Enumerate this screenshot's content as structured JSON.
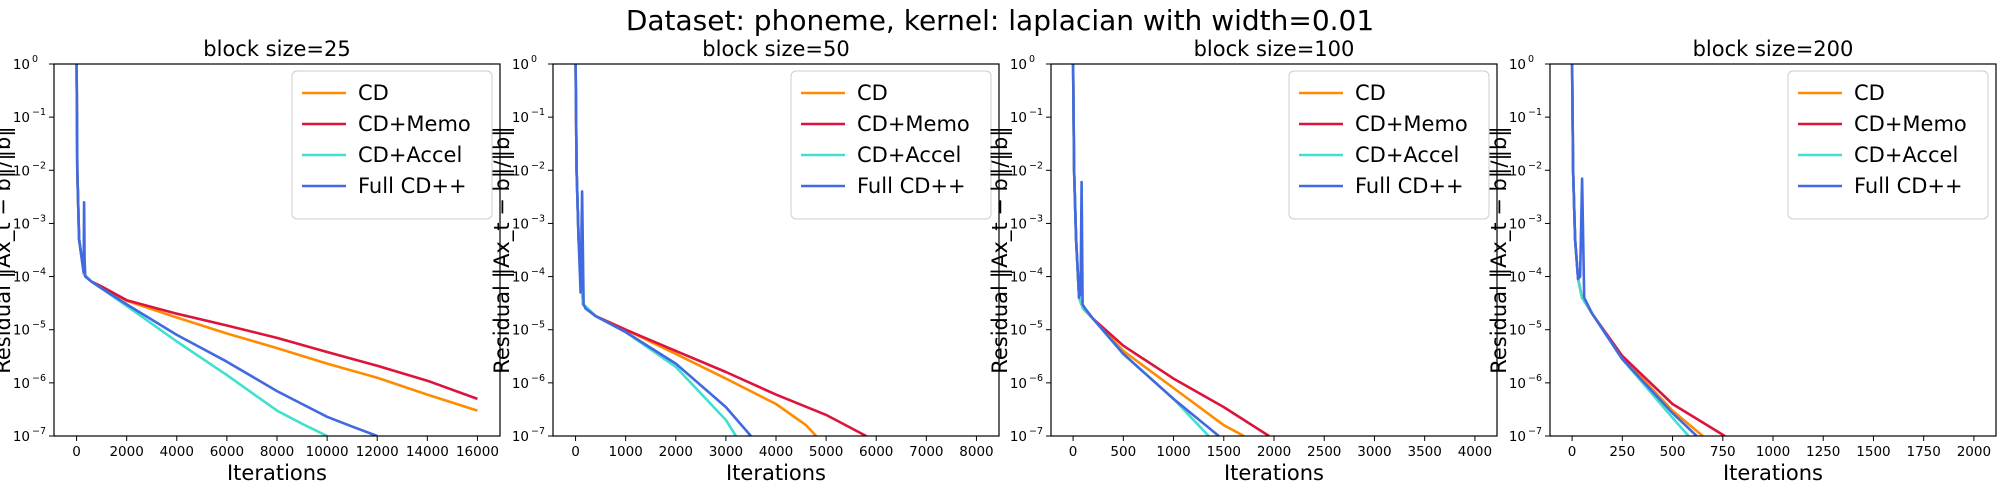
{
  "suptitle": "Dataset: phoneme, kernel: laplacian with width=0.01",
  "colors": {
    "CD": "#ff8c00",
    "CD+Memo": "#dc143c",
    "CD+Accel": "#40e0d0",
    "Full CD++": "#4169e1"
  },
  "chart_data": [
    {
      "type": "line",
      "title": "block size=25",
      "xlabel": "Iterations",
      "ylabel": "Residual ‖Ax_t − b‖/‖b‖",
      "yscale": "log",
      "ylim": [
        1e-07,
        1
      ],
      "xlim": [
        -900,
        16900
      ],
      "xticks": [
        0,
        2000,
        4000,
        6000,
        8000,
        10000,
        12000,
        14000,
        16000
      ],
      "yticks": [
        "10^0",
        "10^-1",
        "10^-2",
        "10^-3",
        "10^-4",
        "10^-5",
        "10^-6",
        "10^-7"
      ],
      "legend": "upper right",
      "series": [
        {
          "name": "CD",
          "x": [
            0,
            30,
            100,
            300,
            600,
            1000,
            2000,
            4000,
            6000,
            8000,
            10000,
            12000,
            14000,
            16000
          ],
          "y": [
            1,
            0.01,
            0.0005,
            0.00011,
            8e-05,
            6.5e-05,
            3.5e-05,
            1.7e-05,
            8.5e-06,
            4.5e-06,
            2.3e-06,
            1.25e-06,
            6e-07,
            3e-07
          ]
        },
        {
          "name": "CD+Memo",
          "x": [
            0,
            30,
            100,
            300,
            600,
            1000,
            2000,
            4000,
            6000,
            8000,
            10000,
            12000,
            14000,
            16000
          ],
          "y": [
            1,
            0.01,
            0.0005,
            0.00011,
            8e-05,
            6.5e-05,
            3.6e-05,
            2e-05,
            1.2e-05,
            7e-06,
            3.8e-06,
            2.1e-06,
            1.1e-06,
            5e-07
          ]
        },
        {
          "name": "CD+Accel",
          "x": [
            0,
            30,
            100,
            300,
            600,
            1000,
            2000,
            4000,
            6000,
            8000,
            9000,
            10000
          ],
          "y": [
            1,
            0.01,
            0.0005,
            0.00011,
            8e-05,
            6e-05,
            2.8e-05,
            6e-06,
            1.4e-06,
            3e-07,
            1.7e-07,
            1e-07
          ]
        },
        {
          "name": "Full CD++",
          "x": [
            0,
            30,
            100,
            280,
            300,
            320,
            350,
            600,
            1000,
            2000,
            4000,
            6000,
            8000,
            9000,
            10000,
            11000,
            12000
          ],
          "y": [
            1,
            0.01,
            0.0005,
            0.00012,
            0.0025,
            0.0002,
            0.0001,
            8e-05,
            6e-05,
            3e-05,
            8e-06,
            2.5e-06,
            7e-07,
            4e-07,
            2.3e-07,
            1.5e-07,
            1e-07
          ]
        }
      ]
    },
    {
      "type": "line",
      "title": "block size=50",
      "xlabel": "Iterations",
      "ylabel": "Residual ‖Ax_t − b‖/‖b‖",
      "yscale": "log",
      "ylim": [
        1e-07,
        1
      ],
      "xlim": [
        -450,
        8450
      ],
      "xticks": [
        0,
        1000,
        2000,
        3000,
        4000,
        5000,
        6000,
        7000,
        8000
      ],
      "yticks": [
        "10^0",
        "10^-1",
        "10^-2",
        "10^-3",
        "10^-4",
        "10^-5",
        "10^-6",
        "10^-7"
      ],
      "legend": "upper right",
      "series": [
        {
          "name": "CD",
          "x": [
            0,
            20,
            60,
            150,
            400,
            1000,
            2000,
            3000,
            4000,
            4600,
            4800
          ],
          "y": [
            1,
            0.01,
            0.0005,
            3e-05,
            1.8e-05,
            1e-05,
            3.5e-06,
            1.2e-06,
            4e-07,
            1.6e-07,
            1e-07
          ]
        },
        {
          "name": "CD+Memo",
          "x": [
            0,
            20,
            60,
            150,
            400,
            1000,
            2000,
            3000,
            4000,
            5000,
            5800
          ],
          "y": [
            1,
            0.01,
            0.0005,
            3e-05,
            1.8e-05,
            1e-05,
            4e-06,
            1.6e-06,
            6e-07,
            2.5e-07,
            1e-07
          ]
        },
        {
          "name": "CD+Accel",
          "x": [
            0,
            20,
            60,
            150,
            400,
            1000,
            2000,
            3000,
            3200
          ],
          "y": [
            1,
            0.01,
            0.0005,
            3e-05,
            1.8e-05,
            9e-06,
            2e-06,
            2e-07,
            1e-07
          ]
        },
        {
          "name": "Full CD++",
          "x": [
            0,
            20,
            60,
            100,
            130,
            160,
            200,
            400,
            1000,
            2000,
            3000,
            3500
          ],
          "y": [
            1,
            0.01,
            0.0005,
            5e-05,
            0.004,
            3e-05,
            2.5e-05,
            1.8e-05,
            9e-06,
            2.3e-06,
            3.5e-07,
            1e-07
          ]
        }
      ]
    },
    {
      "type": "line",
      "title": "block size=100",
      "xlabel": "Iterations",
      "ylabel": "Residual ‖Ax_t − b‖/‖b‖",
      "yscale": "log",
      "ylim": [
        1e-07,
        1
      ],
      "xlim": [
        -220,
        4220
      ],
      "xticks": [
        0,
        500,
        1000,
        1500,
        2000,
        2500,
        3000,
        3500,
        4000
      ],
      "yticks": [
        "10^0",
        "10^-1",
        "10^-2",
        "10^-3",
        "10^-4",
        "10^-5",
        "10^-6",
        "10^-7"
      ],
      "legend": "upper right",
      "series": [
        {
          "name": "CD",
          "x": [
            0,
            10,
            30,
            60,
            100,
            200,
            500,
            1000,
            1500,
            1700
          ],
          "y": [
            1,
            0.01,
            0.0005,
            4e-05,
            2.5e-05,
            1.6e-05,
            4e-06,
            8e-07,
            1.6e-07,
            1e-07
          ]
        },
        {
          "name": "CD+Memo",
          "x": [
            0,
            10,
            30,
            60,
            100,
            200,
            500,
            1000,
            1500,
            1950
          ],
          "y": [
            1,
            0.01,
            0.0005,
            4e-05,
            2.5e-05,
            1.6e-05,
            5e-06,
            1.2e-06,
            3.5e-07,
            1e-07
          ]
        },
        {
          "name": "CD+Accel",
          "x": [
            0,
            10,
            30,
            60,
            100,
            200,
            500,
            1000,
            1350
          ],
          "y": [
            1,
            0.01,
            0.0005,
            4e-05,
            2.5e-05,
            1.6e-05,
            3.5e-06,
            5e-07,
            1e-07
          ]
        },
        {
          "name": "Full CD++",
          "x": [
            0,
            10,
            30,
            60,
            75,
            85,
            95,
            120,
            200,
            500,
            1000,
            1450
          ],
          "y": [
            1,
            0.01,
            0.0005,
            4e-05,
            5e-05,
            0.006,
            3e-05,
            2.5e-05,
            1.6e-05,
            3.5e-06,
            5e-07,
            1e-07
          ]
        }
      ]
    },
    {
      "type": "line",
      "title": "block size=200",
      "xlabel": "Iterations",
      "ylabel": "Residual ‖Ax_t − b‖/‖b‖",
      "yscale": "log",
      "ylim": [
        1e-07,
        1
      ],
      "xlim": [
        -110,
        2110
      ],
      "xticks": [
        0,
        250,
        500,
        750,
        1000,
        1250,
        1500,
        1750,
        2000
      ],
      "yticks": [
        "10^0",
        "10^-1",
        "10^-2",
        "10^-3",
        "10^-4",
        "10^-5",
        "10^-6",
        "10^-7"
      ],
      "legend": "upper right",
      "series": [
        {
          "name": "CD",
          "x": [
            0,
            5,
            15,
            30,
            50,
            100,
            250,
            500,
            650
          ],
          "y": [
            1,
            0.01,
            0.0005,
            9e-05,
            4e-05,
            2e-05,
            3e-06,
            3e-07,
            1e-07
          ]
        },
        {
          "name": "CD+Memo",
          "x": [
            0,
            5,
            15,
            30,
            50,
            100,
            250,
            500,
            760
          ],
          "y": [
            1,
            0.01,
            0.0005,
            9e-05,
            4e-05,
            2e-05,
            3.2e-06,
            4e-07,
            1e-07
          ]
        },
        {
          "name": "CD+Accel",
          "x": [
            0,
            5,
            15,
            30,
            50,
            100,
            250,
            500,
            580
          ],
          "y": [
            1,
            0.01,
            0.0005,
            9e-05,
            4e-05,
            2e-05,
            2.8e-06,
            2.2e-07,
            1e-07
          ]
        },
        {
          "name": "Full CD++",
          "x": [
            0,
            5,
            15,
            30,
            40,
            50,
            60,
            100,
            250,
            500,
            620
          ],
          "y": [
            1,
            0.01,
            0.0005,
            9e-05,
            0.0001,
            0.007,
            4e-05,
            2e-05,
            2.8e-06,
            2.7e-07,
            1e-07
          ]
        }
      ]
    }
  ]
}
